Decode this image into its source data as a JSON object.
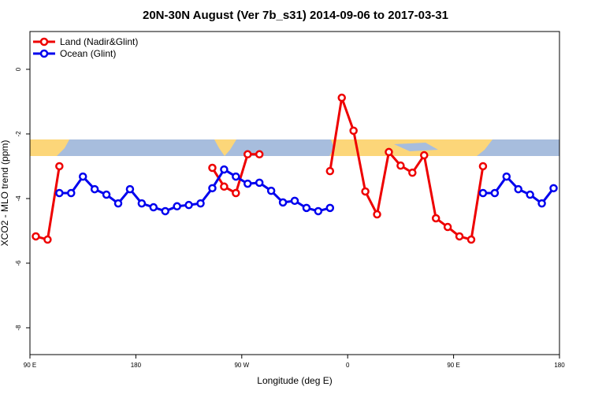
{
  "chart_data": {
    "type": "line",
    "title": "20N-30N August (Ver 7b_s31)   2014-09-06 to 2017-03-31",
    "x_label": "Longitude (deg E)",
    "y_label": "XCO2 - MLO trend (ppm)",
    "xlim": [
      90,
      540
    ],
    "xticks": [
      {
        "value": 90,
        "label": "90 E"
      },
      180,
      {
        "value": 270,
        "label": "90 W"
      },
      {
        "value": 360,
        "label": "0"
      },
      {
        "value": 450,
        "label": "90 E"
      },
      {
        "value": 540,
        "label": "180"
      }
    ],
    "ylim": [
      -8.83,
      1.17
    ],
    "yticks": [
      0,
      -2,
      -4,
      -6,
      -8
    ],
    "legend": "top-left",
    "series": [
      {
        "name": "Land (Nadir&Glint)",
        "color": "#ee0000",
        "x": [
          95,
          105,
          115,
          125,
          245,
          255,
          265,
          275,
          285,
          295,
          345,
          355,
          365,
          375,
          385,
          395,
          405,
          415,
          425,
          435,
          445,
          455,
          465,
          475
        ],
        "values": [
          -5.17,
          -5.27,
          -3.0,
          null,
          -3.05,
          -3.63,
          -3.83,
          -2.63,
          -2.63,
          null,
          -3.15,
          -0.88,
          -1.9,
          -3.78,
          -4.49,
          -2.56,
          -2.98,
          -3.2,
          -2.66,
          -4.61,
          -4.88,
          -5.17,
          -5.27,
          -3.0
        ]
      },
      {
        "name": "Ocean (Glint)",
        "color": "#0000ee",
        "x": [
          115,
          125,
          135,
          145,
          155,
          165,
          175,
          185,
          195,
          205,
          215,
          225,
          235,
          245,
          255,
          265,
          275,
          285,
          295,
          305,
          315,
          325,
          335,
          345,
          355,
          475,
          485,
          495,
          505,
          515,
          525,
          535
        ],
        "values": [
          -3.83,
          -3.83,
          -3.32,
          -3.71,
          -3.88,
          -4.15,
          -3.71,
          -4.15,
          -4.27,
          -4.39,
          -4.24,
          -4.2,
          -4.15,
          -3.68,
          -3.1,
          -3.32,
          -3.54,
          -3.51,
          -3.76,
          -4.12,
          -4.07,
          -4.29,
          -4.39,
          -4.29,
          null,
          -3.83,
          -3.83,
          -3.32,
          -3.71,
          -3.88,
          -4.15,
          -3.68
        ]
      }
    ]
  }
}
